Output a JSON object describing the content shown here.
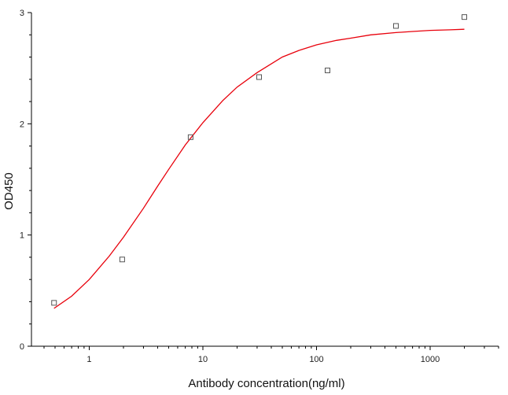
{
  "chart_data": {
    "type": "scatter",
    "title": "",
    "xlabel": "Antibody concentration(ng/ml)",
    "ylabel": "OD450",
    "x_scale": "log",
    "xlim": [
      0.31,
      4000
    ],
    "ylim": [
      0,
      3
    ],
    "x_ticks": [
      1,
      10,
      100,
      1000
    ],
    "x_tick_labels": [
      "1",
      "10",
      "100",
      "1000"
    ],
    "y_ticks": [
      0,
      1,
      2,
      3
    ],
    "y_tick_labels": [
      "0",
      "1",
      "2",
      "3"
    ],
    "grid": false,
    "legend": "none",
    "series": [
      {
        "marker": "open-square",
        "x": [
          0.49,
          1.95,
          7.8,
          31.25,
          125,
          500,
          2000
        ],
        "y": [
          0.39,
          0.78,
          1.88,
          2.42,
          2.48,
          2.88,
          2.96
        ]
      }
    ],
    "fit_curve": {
      "type": "four-parameter logistic",
      "color": "#e8000b",
      "x": [
        0.49,
        0.7,
        1,
        1.5,
        2,
        3,
        4,
        5,
        7,
        10,
        15,
        20,
        30,
        50,
        70,
        100,
        150,
        200,
        300,
        500,
        700,
        1000,
        1500,
        2000
      ],
      "y": [
        0.34,
        0.45,
        0.6,
        0.81,
        0.98,
        1.24,
        1.44,
        1.59,
        1.81,
        2.01,
        2.21,
        2.33,
        2.46,
        2.6,
        2.66,
        2.71,
        2.75,
        2.77,
        2.8,
        2.82,
        2.83,
        2.84,
        2.845,
        2.85
      ]
    },
    "colors": {
      "axis": "#000000",
      "marker": "#555555",
      "curve": "#e8000b"
    }
  }
}
